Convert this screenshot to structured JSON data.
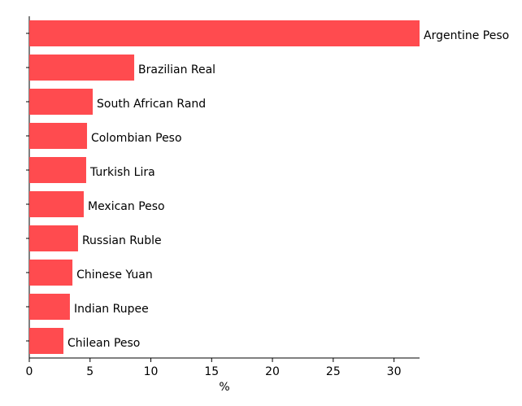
{
  "chart_data": {
    "type": "bar",
    "orientation": "horizontal",
    "xlabel": "%",
    "categories": [
      "Argentine Peso",
      "Brazilian Real",
      "South African Rand",
      "Colombian Peso",
      "Turkish Lira",
      "Mexican Peso",
      "Russian Ruble",
      "Chinese Yuan",
      "Indian Rupee",
      "Chilean Peso"
    ],
    "values": [
      32.1,
      8.63,
      5.22,
      4.75,
      4.68,
      4.48,
      4.01,
      3.55,
      3.34,
      2.81
    ],
    "color": "#ff4b4f",
    "xlim": [
      0,
      32.1
    ],
    "xticks": [
      0,
      5,
      10,
      15,
      20,
      25,
      30
    ]
  }
}
